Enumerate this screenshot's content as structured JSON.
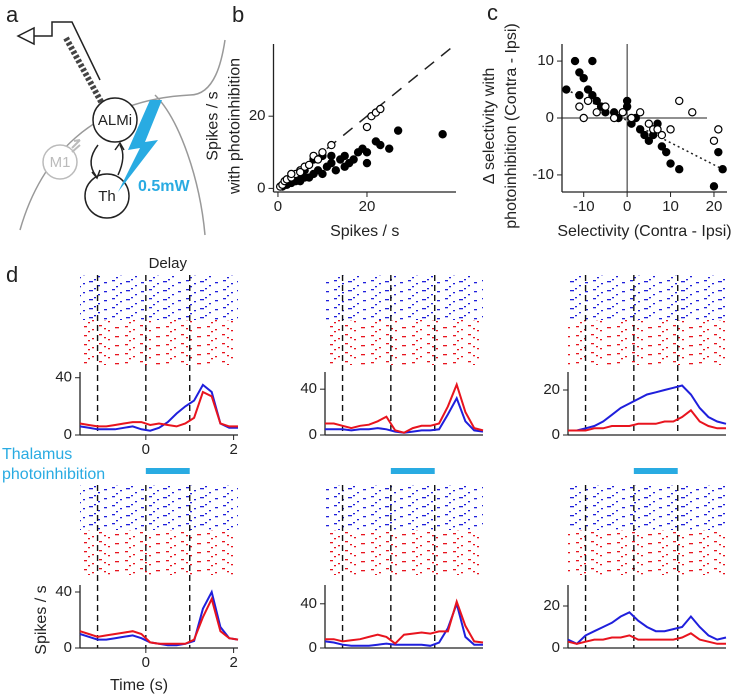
{
  "diagram": {
    "label": "a",
    "nodes": [
      "ALMi",
      "M1",
      "Th"
    ],
    "power": "0.5mW"
  },
  "chart_data": [
    {
      "type": "scatter",
      "label": "b",
      "x_label": "Spikes / s",
      "y_label": [
        "Spikes / s",
        "with photoinhibition"
      ],
      "xlim": [
        -1,
        40
      ],
      "ylim": [
        -1,
        40
      ],
      "xticks": [
        0,
        20
      ],
      "yticks": [
        0,
        20
      ],
      "reference_line": {
        "x": [
          0,
          40
        ],
        "y": [
          0,
          40
        ],
        "style": "dashed"
      },
      "series": [
        {
          "marker": "filled",
          "color": "#000000",
          "x": [
            1,
            2,
            3,
            4,
            5,
            6,
            7,
            8,
            9,
            10,
            11,
            12,
            13,
            14,
            15,
            16,
            17,
            18,
            19,
            20,
            22,
            23,
            25,
            27,
            37,
            8,
            10,
            12,
            6,
            4,
            3,
            2,
            5,
            15,
            20
          ],
          "values": [
            0.5,
            1,
            1.5,
            2,
            2,
            3,
            3,
            4,
            5,
            4,
            6,
            7,
            5,
            8,
            9,
            7,
            8,
            10,
            11,
            10,
            13,
            12,
            11,
            16,
            15,
            8,
            9,
            9,
            5,
            3,
            2.5,
            2,
            4,
            6,
            7
          ]
        },
        {
          "marker": "open",
          "color": "#000000",
          "x": [
            0.5,
            1,
            1.5,
            2,
            3,
            4,
            5,
            6,
            7,
            8,
            9,
            10,
            21,
            22,
            23,
            20,
            5,
            3,
            12
          ],
          "values": [
            0.5,
            1,
            2,
            2.5,
            3,
            4,
            5,
            6,
            6.5,
            9,
            8,
            10,
            20,
            21,
            22,
            17,
            4.5,
            4,
            12
          ]
        }
      ]
    },
    {
      "type": "scatter",
      "label": "c",
      "x_label": "Selectivity (Contra - Ipsi)",
      "y_label": [
        "Δ selectivity with",
        "photoinhibition (Contra - Ipsi)"
      ],
      "xlim": [
        -15,
        23
      ],
      "ylim": [
        -13,
        13
      ],
      "xticks": [
        -10,
        0,
        10,
        20
      ],
      "yticks": [
        -10,
        0,
        10
      ],
      "zero_lines": true,
      "reference_line": {
        "x": [
          -14,
          22
        ],
        "y": [
          5,
          -9
        ],
        "style": "dotted"
      },
      "series": [
        {
          "marker": "filled",
          "color": "#000000",
          "x": [
            -14,
            -12,
            -11,
            -10,
            -11,
            -9,
            -8,
            -7,
            -6,
            -5,
            -3,
            -2,
            -1,
            0,
            1,
            2,
            3,
            4,
            5,
            6,
            7,
            8,
            9,
            10,
            12,
            20,
            22,
            21,
            -8,
            0
          ],
          "values": [
            5,
            10,
            8,
            7,
            4,
            5,
            4,
            3,
            2,
            1,
            1,
            0,
            1,
            2,
            -1,
            0,
            -2,
            -3,
            -4,
            -3,
            -1,
            -5,
            -6,
            -8,
            -9,
            -12,
            -9,
            -6,
            10,
            3
          ]
        },
        {
          "marker": "open",
          "color": "#000000",
          "x": [
            -11,
            -9,
            -7,
            -5,
            -3,
            -1,
            1,
            3,
            5,
            6,
            8,
            10,
            12,
            15,
            20,
            21,
            7,
            -10
          ],
          "values": [
            2,
            3,
            1,
            2,
            0,
            1,
            0,
            1,
            -1,
            -2,
            -3,
            -2,
            3,
            1,
            -4,
            -2,
            -2,
            0
          ]
        }
      ]
    },
    {
      "type": "line",
      "label": "d",
      "annotation": "Delay",
      "xlim": [
        -1.5,
        2.1
      ],
      "ylim": [
        0,
        44
      ],
      "yticks": [
        0,
        40
      ],
      "xticks": [
        0,
        2
      ],
      "epochs": [
        -1.1,
        0,
        1.0
      ],
      "x": [
        -1.5,
        -1.3,
        -1.1,
        -0.9,
        -0.7,
        -0.5,
        -0.3,
        -0.1,
        0.1,
        0.3,
        0.5,
        0.7,
        0.9,
        1.1,
        1.3,
        1.5,
        1.7,
        1.9,
        2.1
      ],
      "series": [
        {
          "color": "#1f1fdc",
          "values": [
            6,
            5,
            4,
            4,
            4,
            5,
            6,
            4,
            3,
            5,
            9,
            15,
            20,
            24,
            35,
            30,
            8,
            5,
            5
          ]
        },
        {
          "color": "#e8141e",
          "values": [
            8,
            7,
            6,
            6,
            7,
            8,
            9,
            9,
            7,
            8,
            7,
            6,
            8,
            12,
            30,
            27,
            8,
            6,
            6
          ]
        }
      ]
    },
    {
      "type": "line",
      "xlim": [
        -1.5,
        2.1
      ],
      "ylim": [
        0,
        55
      ],
      "yticks": [
        0,
        40
      ],
      "epochs": [
        -1.1,
        0,
        1.0
      ],
      "x": [
        -1.5,
        -1.3,
        -1.1,
        -0.9,
        -0.7,
        -0.5,
        -0.3,
        -0.1,
        0.1,
        0.3,
        0.5,
        0.7,
        0.9,
        1.1,
        1.3,
        1.5,
        1.7,
        1.9,
        2.1
      ],
      "series": [
        {
          "color": "#1f1fdc",
          "values": [
            5,
            5,
            5,
            4,
            5,
            5,
            6,
            5,
            3,
            2,
            3,
            4,
            4,
            5,
            18,
            32,
            12,
            4,
            3
          ]
        },
        {
          "color": "#e8141e",
          "values": [
            10,
            10,
            8,
            6,
            8,
            9,
            12,
            16,
            4,
            2,
            6,
            8,
            8,
            10,
            25,
            44,
            20,
            6,
            4
          ]
        }
      ]
    },
    {
      "type": "line",
      "xlim": [
        -1.5,
        2.1
      ],
      "ylim": [
        0,
        28
      ],
      "yticks": [
        0,
        20
      ],
      "epochs": [
        -1.1,
        0,
        1.0
      ],
      "x": [
        -1.5,
        -1.3,
        -1.1,
        -0.9,
        -0.7,
        -0.5,
        -0.3,
        -0.1,
        0.1,
        0.3,
        0.5,
        0.7,
        0.9,
        1.1,
        1.3,
        1.5,
        1.7,
        1.9,
        2.1
      ],
      "series": [
        {
          "color": "#1f1fdc",
          "values": [
            2,
            2,
            3,
            4,
            6,
            9,
            12,
            14,
            16,
            18,
            19,
            20,
            21,
            22,
            18,
            12,
            8,
            6,
            5
          ]
        },
        {
          "color": "#e8141e",
          "values": [
            2,
            2,
            2,
            3,
            3,
            4,
            4,
            4,
            5,
            5,
            5,
            6,
            6,
            8,
            11,
            6,
            4,
            3,
            3
          ]
        }
      ]
    },
    {
      "type": "line",
      "x_label": "Time (s)",
      "y_label": "Spikes / s",
      "xlim": [
        -1.5,
        2.1
      ],
      "ylim": [
        0,
        45
      ],
      "yticks": [
        0,
        40
      ],
      "xticks": [
        0,
        2
      ],
      "epochs": [
        -1.1,
        0,
        1.0
      ],
      "photoinhibition": {
        "label": [
          "Thalamus",
          "photoinhibition"
        ],
        "span": [
          0,
          1.0
        ],
        "color": "#29abe2"
      },
      "x": [
        -1.5,
        -1.3,
        -1.1,
        -0.9,
        -0.7,
        -0.5,
        -0.3,
        -0.1,
        0.1,
        0.3,
        0.5,
        0.7,
        0.9,
        1.1,
        1.3,
        1.5,
        1.7,
        1.9,
        2.1
      ],
      "series": [
        {
          "color": "#1f1fdc",
          "values": [
            10,
            8,
            6,
            6,
            7,
            8,
            9,
            7,
            4,
            3,
            2,
            2,
            3,
            5,
            28,
            40,
            15,
            7,
            6
          ]
        },
        {
          "color": "#e8141e",
          "values": [
            12,
            10,
            8,
            9,
            10,
            11,
            12,
            10,
            4,
            3,
            3,
            3,
            3,
            6,
            22,
            35,
            12,
            7,
            6
          ]
        }
      ]
    },
    {
      "type": "line",
      "xlim": [
        -1.5,
        2.1
      ],
      "ylim": [
        0,
        57
      ],
      "yticks": [
        0,
        40
      ],
      "epochs": [
        -1.1,
        0,
        1.0
      ],
      "photoinhibition": {
        "span": [
          0,
          1.0
        ],
        "color": "#29abe2"
      },
      "x": [
        -1.5,
        -1.3,
        -1.1,
        -0.9,
        -0.7,
        -0.5,
        -0.3,
        -0.1,
        0.1,
        0.3,
        0.5,
        0.7,
        0.9,
        1.1,
        1.3,
        1.5,
        1.7,
        1.9,
        2.1
      ],
      "series": [
        {
          "color": "#1f1fdc",
          "values": [
            6,
            5,
            3,
            2,
            2,
            2,
            3,
            4,
            3,
            3,
            3,
            3,
            2,
            5,
            18,
            40,
            10,
            3,
            3
          ]
        },
        {
          "color": "#e8141e",
          "values": [
            8,
            8,
            6,
            7,
            8,
            10,
            12,
            10,
            4,
            12,
            13,
            14,
            13,
            15,
            15,
            42,
            20,
            6,
            5
          ]
        }
      ]
    },
    {
      "type": "line",
      "xlim": [
        -1.5,
        2.1
      ],
      "ylim": [
        0,
        30
      ],
      "yticks": [
        0,
        20
      ],
      "epochs": [
        -1.1,
        0,
        1.0
      ],
      "photoinhibition": {
        "span": [
          0,
          1.0
        ],
        "color": "#29abe2"
      },
      "x": [
        -1.5,
        -1.3,
        -1.1,
        -0.9,
        -0.7,
        -0.5,
        -0.3,
        -0.1,
        0.1,
        0.3,
        0.5,
        0.7,
        0.9,
        1.1,
        1.3,
        1.5,
        1.7,
        1.9,
        2.1
      ],
      "series": [
        {
          "color": "#1f1fdc",
          "values": [
            4,
            2,
            6,
            8,
            10,
            12,
            15,
            17,
            13,
            10,
            8,
            8,
            9,
            10,
            15,
            10,
            6,
            4,
            5
          ]
        },
        {
          "color": "#e8141e",
          "values": [
            3,
            2,
            3,
            4,
            4,
            5,
            5,
            6,
            4,
            4,
            4,
            4,
            4,
            5,
            7,
            4,
            3,
            2,
            2
          ]
        }
      ]
    }
  ]
}
